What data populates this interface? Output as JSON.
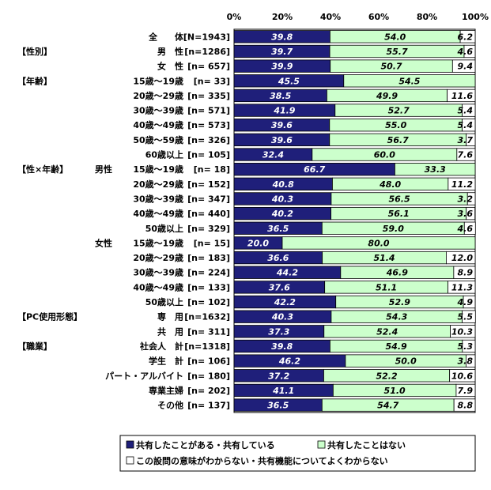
{
  "chart_data": {
    "type": "bar",
    "stacked": true,
    "orientation": "horizontal",
    "xlim": [
      0,
      100
    ],
    "x_ticks": [
      "0%",
      "20%",
      "40%",
      "60%",
      "80%",
      "100%"
    ],
    "colors": [
      "#1f1f7a",
      "#ccffcc",
      "#ffffff"
    ],
    "series_names": [
      "共有したことがある・共有している",
      "共有したことはない",
      "この設問の意味がわからない・共有機能についてよくわからない"
    ],
    "rows": [
      {
        "section": "",
        "group": "",
        "label": "全　　体",
        "n": "[N=1943]",
        "values": [
          39.8,
          54.0,
          6.2
        ]
      },
      {
        "section": "【性別】",
        "group": "",
        "label": "男　性",
        "n": "[n=1286]",
        "values": [
          39.7,
          55.7,
          4.6
        ]
      },
      {
        "section": "",
        "group": "",
        "label": "女　性",
        "n": "[n= 657]",
        "values": [
          39.9,
          50.7,
          9.4
        ]
      },
      {
        "section": "【年齢】",
        "group": "",
        "label": "15歳～19歳",
        "n": "[n=  33]",
        "values": [
          45.5,
          54.5,
          null
        ]
      },
      {
        "section": "",
        "group": "",
        "label": "20歳～29歳",
        "n": "[n= 335]",
        "values": [
          38.5,
          49.9,
          11.6
        ]
      },
      {
        "section": "",
        "group": "",
        "label": "30歳～39歳",
        "n": "[n= 571]",
        "values": [
          41.9,
          52.7,
          5.4
        ]
      },
      {
        "section": "",
        "group": "",
        "label": "40歳～49歳",
        "n": "[n= 573]",
        "values": [
          39.6,
          55.0,
          5.4
        ]
      },
      {
        "section": "",
        "group": "",
        "label": "50歳～59歳",
        "n": "[n= 326]",
        "values": [
          39.6,
          56.7,
          3.7
        ]
      },
      {
        "section": "",
        "group": "",
        "label": "60歳以上",
        "n": "[n= 105]",
        "values": [
          32.4,
          60.0,
          7.6
        ]
      },
      {
        "section": "【性×年齢】",
        "group": "男性",
        "label": "15歳～19歳",
        "n": "[n=  18]",
        "values": [
          66.7,
          33.3,
          null
        ]
      },
      {
        "section": "",
        "group": "",
        "label": "20歳～29歳",
        "n": "[n= 152]",
        "values": [
          40.8,
          48.0,
          11.2
        ]
      },
      {
        "section": "",
        "group": "",
        "label": "30歳～39歳",
        "n": "[n= 347]",
        "values": [
          40.3,
          56.5,
          3.2
        ]
      },
      {
        "section": "",
        "group": "",
        "label": "40歳～49歳",
        "n": "[n= 440]",
        "values": [
          40.2,
          56.1,
          3.6
        ]
      },
      {
        "section": "",
        "group": "",
        "label": "50歳以上",
        "n": "[n= 329]",
        "values": [
          36.5,
          59.0,
          4.6
        ]
      },
      {
        "section": "",
        "group": "女性",
        "label": "15歳～19歳",
        "n": "[n=  15]",
        "values": [
          20.0,
          80.0,
          null
        ]
      },
      {
        "section": "",
        "group": "",
        "label": "20歳～29歳",
        "n": "[n= 183]",
        "values": [
          36.6,
          51.4,
          12.0
        ]
      },
      {
        "section": "",
        "group": "",
        "label": "30歳～39歳",
        "n": "[n= 224]",
        "values": [
          44.2,
          46.9,
          8.9
        ]
      },
      {
        "section": "",
        "group": "",
        "label": "40歳～49歳",
        "n": "[n= 133]",
        "values": [
          37.6,
          51.1,
          11.3
        ]
      },
      {
        "section": "",
        "group": "",
        "label": "50歳以上",
        "n": "[n= 102]",
        "values": [
          42.2,
          52.9,
          4.9
        ]
      },
      {
        "section": "【PC使用形態】",
        "group": "",
        "label": "専　用",
        "n": "[n=1632]",
        "values": [
          40.3,
          54.3,
          5.5
        ]
      },
      {
        "section": "",
        "group": "",
        "label": "共　用",
        "n": "[n= 311]",
        "values": [
          37.3,
          52.4,
          10.3
        ]
      },
      {
        "section": "【職業】",
        "group": "",
        "label": "社会人　計",
        "n": "[n=1318]",
        "values": [
          39.8,
          54.9,
          5.3
        ]
      },
      {
        "section": "",
        "group": "",
        "label": "学生　計",
        "n": "[n= 106]",
        "values": [
          46.2,
          50.0,
          3.8
        ]
      },
      {
        "section": "",
        "group": "",
        "label": "パート・アルバイト",
        "n": "[n= 180]",
        "values": [
          37.2,
          52.2,
          10.6
        ]
      },
      {
        "section": "",
        "group": "",
        "label": "専業主婦",
        "n": "[n= 202]",
        "values": [
          41.1,
          51.0,
          7.9
        ]
      },
      {
        "section": "",
        "group": "",
        "label": "その他",
        "n": "[n= 137]",
        "values": [
          36.5,
          54.7,
          8.8
        ]
      }
    ]
  }
}
